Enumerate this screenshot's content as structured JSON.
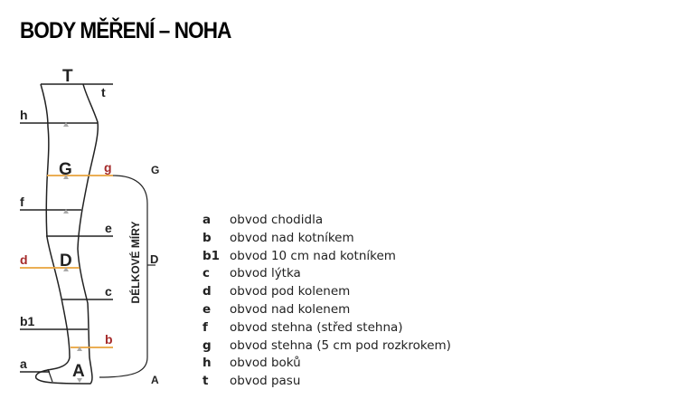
{
  "title": "BODY MĚŘENÍ – NOHA",
  "diagram": {
    "top_label": "T",
    "length_axis_label": "DÉLKOVÉ MÍRY",
    "length_points": [
      "G",
      "D",
      "A"
    ],
    "leg_points": [
      "G",
      "D",
      "A"
    ],
    "circumference_labels": [
      "t",
      "h",
      "g",
      "f",
      "e",
      "d",
      "c",
      "b1",
      "b",
      "a"
    ],
    "highlight_color": "#e8a33c",
    "highlight_label_color": "#a52a2a"
  },
  "legend": [
    {
      "key": "a",
      "text": "obvod chodidla"
    },
    {
      "key": "b",
      "text": "obvod nad kotníkem"
    },
    {
      "key": "b1",
      "text": "obvod 10 cm nad kotníkem"
    },
    {
      "key": "c",
      "text": "obvod lýtka"
    },
    {
      "key": "d",
      "text": "obvod pod kolenem"
    },
    {
      "key": "e",
      "text": "obvod nad kolenem"
    },
    {
      "key": "f",
      "text": "obvod stehna (střed stehna)"
    },
    {
      "key": "g",
      "text": "obvod stehna (5 cm pod rozkrokem)"
    },
    {
      "key": "h",
      "text": "obvod boků"
    },
    {
      "key": "t",
      "text": "obvod pasu"
    }
  ]
}
